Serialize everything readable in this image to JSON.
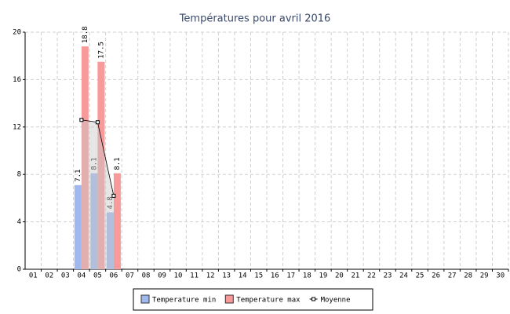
{
  "chart_data": {
    "type": "bar",
    "title": "Températures pour avril 2016",
    "categories": [
      "01",
      "02",
      "03",
      "04",
      "05",
      "06",
      "07",
      "08",
      "09",
      "10",
      "11",
      "12",
      "13",
      "14",
      "15",
      "16",
      "17",
      "18",
      "19",
      "20",
      "21",
      "22",
      "23",
      "24",
      "25",
      "26",
      "27",
      "28",
      "29",
      "30"
    ],
    "series": [
      {
        "name": "Temperature min",
        "color": "#9fb9ee",
        "type": "bar",
        "values": [
          null,
          null,
          null,
          7.1,
          8.1,
          4.8,
          null,
          null,
          null,
          null,
          null,
          null,
          null,
          null,
          null,
          null,
          null,
          null,
          null,
          null,
          null,
          null,
          null,
          null,
          null,
          null,
          null,
          null,
          null,
          null
        ]
      },
      {
        "name": "Temperature max",
        "color": "#f89a9a",
        "type": "bar",
        "values": [
          null,
          null,
          null,
          18.8,
          17.5,
          8.1,
          null,
          null,
          null,
          null,
          null,
          null,
          null,
          null,
          null,
          null,
          null,
          null,
          null,
          null,
          null,
          null,
          null,
          null,
          null,
          null,
          null,
          null,
          null,
          null
        ]
      },
      {
        "name": "Moyenne",
        "color": "#000000",
        "type": "line",
        "values": [
          null,
          null,
          null,
          12.6,
          12.4,
          6.2,
          null,
          null,
          null,
          null,
          null,
          null,
          null,
          null,
          null,
          null,
          null,
          null,
          null,
          null,
          null,
          null,
          null,
          null,
          null,
          null,
          null,
          null,
          null,
          null
        ]
      }
    ],
    "ylim": [
      0,
      20
    ],
    "yticks": [
      0,
      4,
      8,
      12,
      16,
      20
    ],
    "grid": true,
    "legend": "bottom"
  }
}
